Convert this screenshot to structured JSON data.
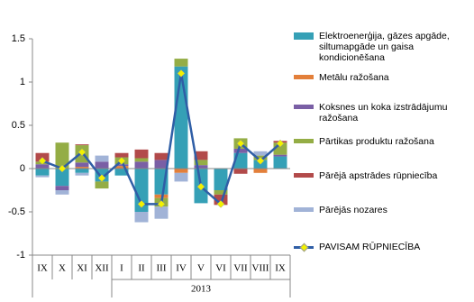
{
  "chart_data": {
    "type": "stacked-bar-line",
    "categories": [
      "IX",
      "X",
      "XI",
      "XII",
      "I",
      "II",
      "III",
      "IV",
      "V",
      "VI",
      "VII",
      "VIII",
      "IX"
    ],
    "group_label": "2013",
    "ylim": [
      -1,
      1.5
    ],
    "yticks": [
      -1,
      -0.5,
      0,
      0.5,
      1,
      1.5
    ],
    "series": [
      {
        "name": "Elektroenerģija, gāzes apgāde, siltumapgāde un gaisa kondicionēšana",
        "color": "#35a0b6",
        "values": [
          -0.08,
          -0.2,
          -0.05,
          -0.15,
          -0.08,
          -0.5,
          -0.3,
          1.18,
          -0.4,
          -0.25,
          0.18,
          0.1,
          0.14
        ]
      },
      {
        "name": "Metālu ražošana",
        "color": "#e37f3a",
        "values": [
          0,
          0,
          0.02,
          0,
          0.03,
          0,
          -0.04,
          -0.05,
          0,
          0,
          0,
          -0.05,
          0
        ]
      },
      {
        "name": "Koksnes un koka izstrādājumu ražošana",
        "color": "#7a5fa5",
        "values": [
          0.05,
          -0.05,
          0.05,
          0.08,
          0.02,
          0.08,
          0.1,
          0,
          0.04,
          0,
          0.05,
          0,
          0.02
        ]
      },
      {
        "name": "Pārtikas produktu ražošana",
        "color": "#94ad45",
        "values": [
          0.03,
          0.3,
          0.2,
          -0.08,
          0.08,
          0.04,
          -0.1,
          0.09,
          0.06,
          -0.05,
          0.12,
          0.05,
          0.14
        ]
      },
      {
        "name": "Pārējā apstrādes rūpniecība",
        "color": "#b24a4a",
        "values": [
          0.1,
          0,
          0.01,
          0,
          0.05,
          0.1,
          0.08,
          0,
          0.1,
          -0.12,
          -0.06,
          0,
          0.02
        ]
      },
      {
        "name": "Pārējās nozares",
        "color": "#a1b3d7",
        "values": [
          -0.02,
          -0.05,
          -0.03,
          0.07,
          0,
          -0.12,
          -0.14,
          -0.1,
          0,
          0,
          0,
          0.05,
          0
        ]
      }
    ],
    "line": {
      "name": "PAVISAM RŪPNIECĪBA",
      "color": "#2f5ea6",
      "marker_color": "#f2f200",
      "values": [
        0.09,
        0.0,
        0.19,
        -0.11,
        0.09,
        -0.41,
        -0.41,
        1.1,
        -0.21,
        -0.41,
        0.29,
        0.09,
        0.29
      ]
    }
  }
}
